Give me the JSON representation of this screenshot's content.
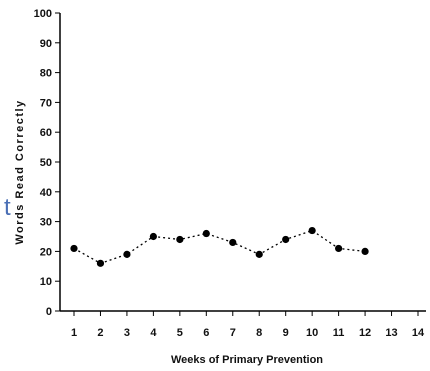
{
  "stray_glyph": "t",
  "chart_data": {
    "type": "line",
    "title": "",
    "xlabel": "Weeks of Primary Prevention",
    "ylabel": "Words Read Correctly",
    "xlim": [
      1,
      14
    ],
    "ylim": [
      0,
      100
    ],
    "x_ticks": [
      1,
      2,
      3,
      4,
      5,
      6,
      7,
      8,
      9,
      10,
      11,
      12,
      13,
      14
    ],
    "y_ticks": [
      0,
      10,
      20,
      30,
      40,
      50,
      60,
      70,
      80,
      90,
      100
    ],
    "grid": false,
    "line_style": "dotted",
    "marker": "circle",
    "colors": {
      "line": "#000000",
      "marker": "#000000"
    },
    "series": [
      {
        "x": [
          1,
          2,
          3,
          4,
          5,
          6,
          7,
          8,
          9,
          10,
          11,
          12
        ],
        "values": [
          21,
          16,
          19,
          25,
          24,
          26,
          23,
          19,
          24,
          27,
          21,
          20
        ]
      }
    ]
  }
}
